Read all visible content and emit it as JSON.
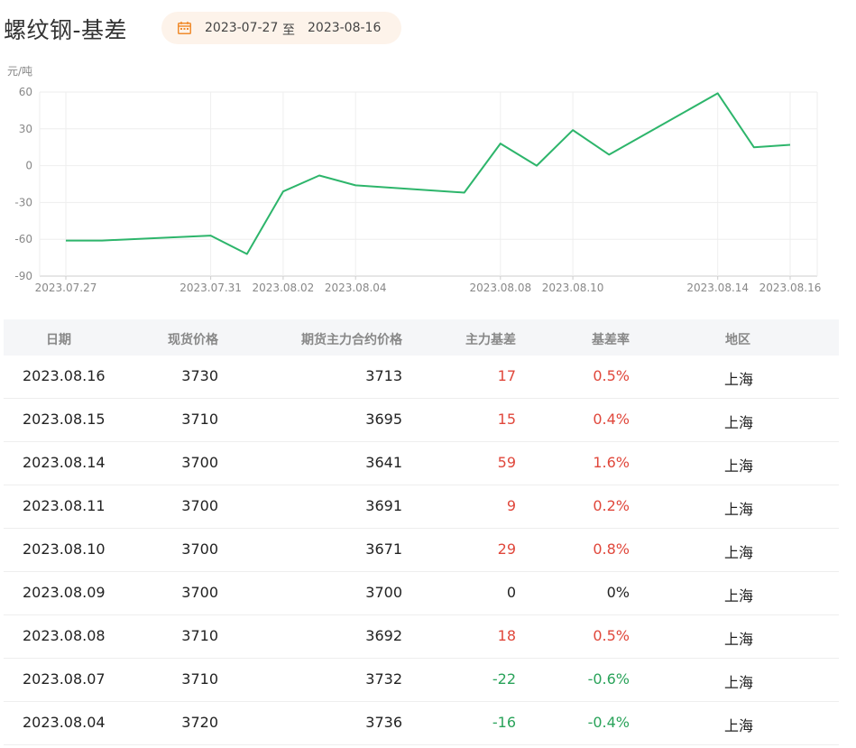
{
  "page": {
    "title": "螺纹钢-基差",
    "date_from": "2023-07-27",
    "date_sep": "至",
    "date_to": "2023-08-16",
    "accent_color": "#f08c2e",
    "line_color": "#2db56b",
    "up_color": "#e0473b",
    "down_color": "#2aa35a"
  },
  "chart_data": {
    "type": "line",
    "ylabel": "元/吨",
    "ylim": [
      -90,
      60
    ],
    "yticks": [
      60,
      30,
      0,
      -30,
      -60,
      -90
    ],
    "xticks": [
      "2023.07.27",
      "2023.07.31",
      "2023.08.02",
      "2023.08.04",
      "2023.08.08",
      "2023.08.10",
      "2023.08.14",
      "2023.08.16"
    ],
    "x": [
      "2023.07.27",
      "2023.07.28",
      "2023.07.31",
      "2023.08.01",
      "2023.08.02",
      "2023.08.03",
      "2023.08.04",
      "2023.08.07",
      "2023.08.08",
      "2023.08.09",
      "2023.08.10",
      "2023.08.11",
      "2023.08.14",
      "2023.08.15",
      "2023.08.16"
    ],
    "series": [
      {
        "values": [
          -61,
          -61,
          -57,
          -72,
          -21,
          -8,
          -16,
          -22,
          18,
          0,
          29,
          9,
          59,
          15,
          17
        ]
      }
    ],
    "grid": true
  },
  "table": {
    "headers": {
      "date": "日期",
      "spot": "现货价格",
      "futures": "期货主力合约价格",
      "basis": "主力基差",
      "rate": "基差率",
      "area": "地区"
    },
    "rows": [
      {
        "date": "2023.08.16",
        "spot": "3730",
        "futures": "3713",
        "basis": "17",
        "rate": "0.5%",
        "area": "上海",
        "dir": "up"
      },
      {
        "date": "2023.08.15",
        "spot": "3710",
        "futures": "3695",
        "basis": "15",
        "rate": "0.4%",
        "area": "上海",
        "dir": "up"
      },
      {
        "date": "2023.08.14",
        "spot": "3700",
        "futures": "3641",
        "basis": "59",
        "rate": "1.6%",
        "area": "上海",
        "dir": "up"
      },
      {
        "date": "2023.08.11",
        "spot": "3700",
        "futures": "3691",
        "basis": "9",
        "rate": "0.2%",
        "area": "上海",
        "dir": "up"
      },
      {
        "date": "2023.08.10",
        "spot": "3700",
        "futures": "3671",
        "basis": "29",
        "rate": "0.8%",
        "area": "上海",
        "dir": "up"
      },
      {
        "date": "2023.08.09",
        "spot": "3700",
        "futures": "3700",
        "basis": "0",
        "rate": "0%",
        "area": "上海",
        "dir": "flat"
      },
      {
        "date": "2023.08.08",
        "spot": "3710",
        "futures": "3692",
        "basis": "18",
        "rate": "0.5%",
        "area": "上海",
        "dir": "up"
      },
      {
        "date": "2023.08.07",
        "spot": "3710",
        "futures": "3732",
        "basis": "-22",
        "rate": "-0.6%",
        "area": "上海",
        "dir": "down"
      },
      {
        "date": "2023.08.04",
        "spot": "3720",
        "futures": "3736",
        "basis": "-16",
        "rate": "-0.4%",
        "area": "上海",
        "dir": "down"
      }
    ]
  }
}
